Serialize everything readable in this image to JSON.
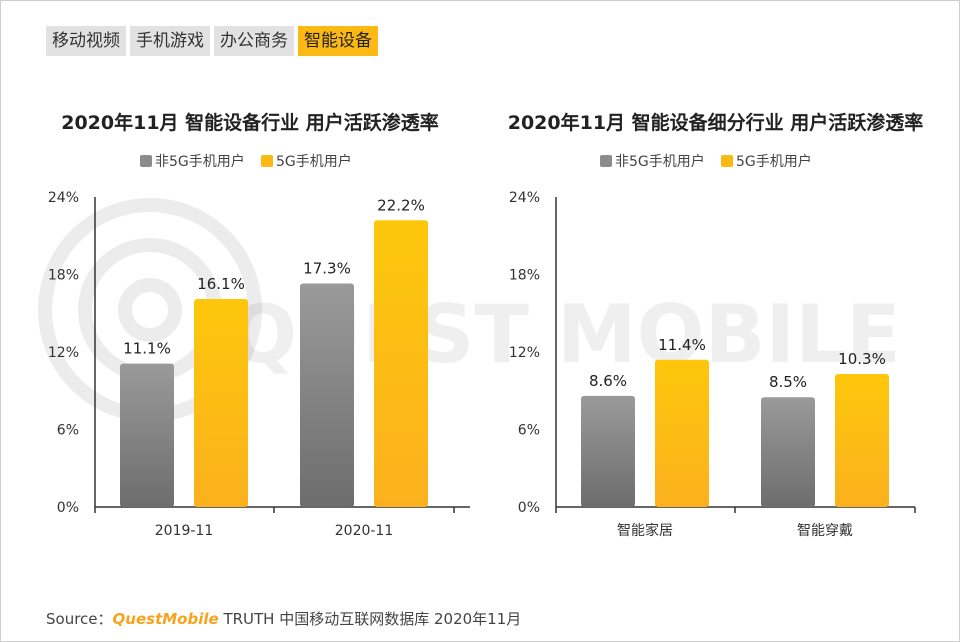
{
  "tabs": [
    {
      "label": "移动视频",
      "active": false
    },
    {
      "label": "手机游戏",
      "active": false
    },
    {
      "label": "办公商务",
      "active": false
    },
    {
      "label": "智能设备",
      "active": true
    }
  ],
  "watermark_text": "QUEST MOBILE",
  "colors": {
    "non5g": "#8c8c8c",
    "g5": "#fdb913",
    "axis": "#333333",
    "tab_active": "#fdb913"
  },
  "chart_data": [
    {
      "type": "bar",
      "title": "2020年11月 智能设备行业 用户活跃渗透率",
      "categories": [
        "2019-11",
        "2020-11"
      ],
      "series": [
        {
          "name": "非5G手机用户",
          "values": [
            11.1,
            17.3
          ]
        },
        {
          "name": "5G手机用户",
          "values": [
            16.1,
            22.2
          ]
        }
      ],
      "yticks": [
        "0%",
        "6%",
        "12%",
        "18%",
        "24%"
      ],
      "ylim": [
        0,
        24
      ],
      "legend": "top"
    },
    {
      "type": "bar",
      "title": "2020年11月 智能设备细分行业 用户活跃渗透率",
      "categories": [
        "智能家居",
        "智能穿戴"
      ],
      "series": [
        {
          "name": "非5G手机用户",
          "values": [
            8.6,
            8.5
          ]
        },
        {
          "name": "5G手机用户",
          "values": [
            11.4,
            10.3
          ]
        }
      ],
      "yticks": [
        "0%",
        "6%",
        "12%",
        "18%",
        "24%"
      ],
      "ylim": [
        0,
        24
      ],
      "legend": "top"
    }
  ],
  "footer": {
    "prefix": "Source：",
    "brand": "QuestMobile",
    "rest": " TRUTH 中国移动互联网数据库 2020年11月"
  }
}
